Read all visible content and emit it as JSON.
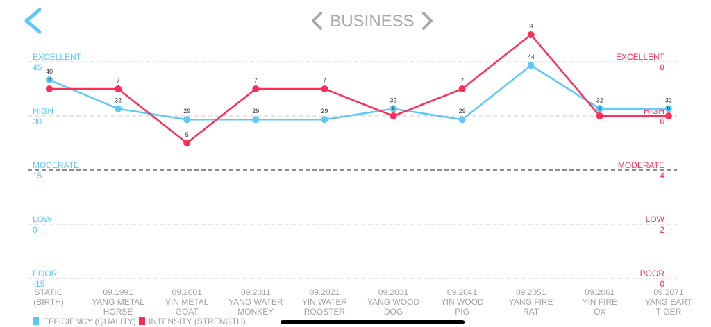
{
  "header": {
    "title": "BUSINESS",
    "back_icon": "chevron-left-icon",
    "prev_icon": "chevron-left-icon",
    "next_icon": "chevron-right-icon"
  },
  "colors": {
    "efficiency": "#5AC8FA",
    "intensity": "#FF2D55",
    "grid": "#cccccc",
    "moderate_line": "#8e8e8e",
    "ticks": "#a0a0a0",
    "value_label": "#333333"
  },
  "chart_data": {
    "type": "line",
    "title": "BUSINESS",
    "categories": [
      [
        "STATIC",
        "(BIRTH)",
        ""
      ],
      [
        "09.1991",
        "YANG METAL",
        "HORSE"
      ],
      [
        "09.2001",
        "YIN METAL",
        "GOAT"
      ],
      [
        "09.2011",
        "YANG WATER",
        "MONKEY"
      ],
      [
        "09.2021",
        "YIN WATER",
        "ROOSTER"
      ],
      [
        "09.2031",
        "YANG WOOD",
        "DOG"
      ],
      [
        "09.2041",
        "YIN WOOD",
        "PIG"
      ],
      [
        "09.2051",
        "YANG FIRE",
        "RAT"
      ],
      [
        "09.2061",
        "YIN FIRE",
        "OX"
      ],
      [
        "09.2071",
        "YANG EART",
        "TIGER"
      ]
    ],
    "series": [
      {
        "name": "EFFICIENCY (QUALITY)",
        "axis": "left",
        "color": "#5AC8FA",
        "values": [
          40,
          32,
          29,
          29,
          29,
          32,
          29,
          44,
          32,
          32
        ]
      },
      {
        "name": "INTENSITY (STRENGTH)",
        "axis": "right",
        "color": "#FF2D55",
        "values": [
          7,
          7,
          5,
          7,
          7,
          6,
          7,
          9,
          6,
          6
        ]
      }
    ],
    "left_axis": {
      "ylim": [
        -15,
        45
      ],
      "ticks": [
        {
          "label": "EXCELLENT",
          "value": 45
        },
        {
          "label": "HIGH",
          "value": 30
        },
        {
          "label": "MODERATE",
          "value": 15
        },
        {
          "label": "LOW",
          "value": 0
        },
        {
          "label": "POOR",
          "value": -15
        }
      ]
    },
    "right_axis": {
      "ylim": [
        0,
        8
      ],
      "ticks": [
        {
          "label": "EXCELLENT",
          "value": 8
        },
        {
          "label": "HIGH",
          "value": 6
        },
        {
          "label": "MODERATE",
          "value": 4
        },
        {
          "label": "LOW",
          "value": 2
        },
        {
          "label": "POOR",
          "value": 0
        }
      ]
    },
    "grid": true,
    "legend": "bottom-left"
  }
}
